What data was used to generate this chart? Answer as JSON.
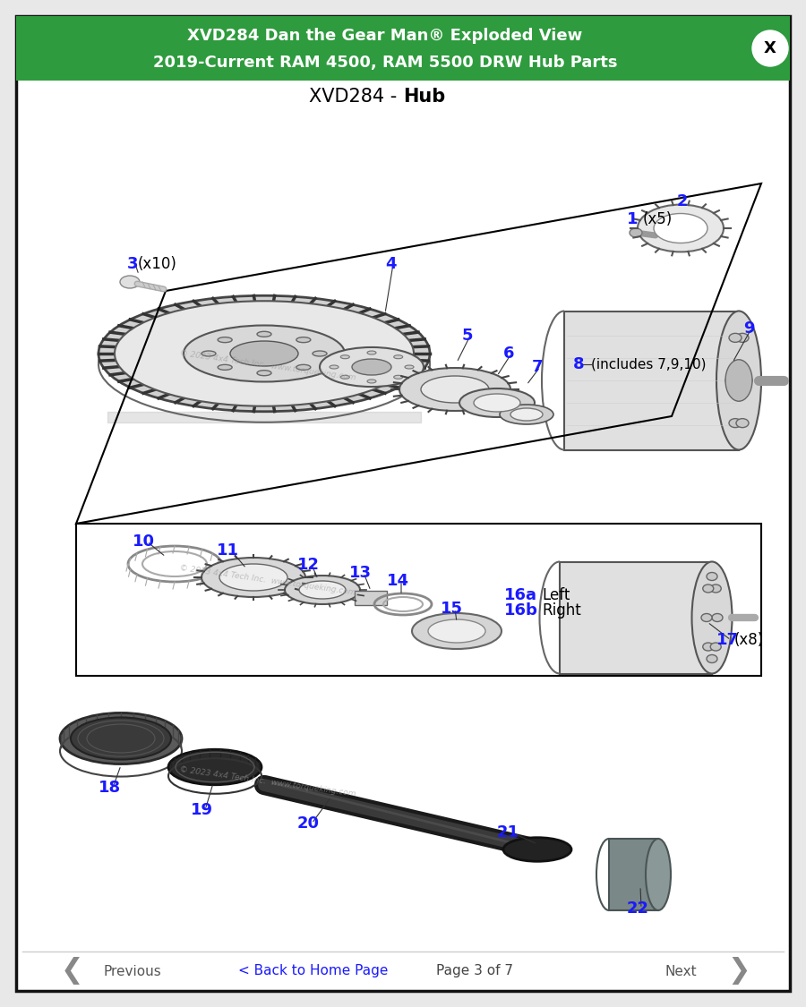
{
  "title_line1": "XVD284 Dan the Gear Man® Exploded View",
  "title_line2": "2019-Current RAM 4500, RAM 5500 DRW Hub Parts",
  "subtitle_normal": "XVD284 - ",
  "subtitle_bold": "Hub",
  "header_bg": "#2e9b3e",
  "header_text_color": "#ffffff",
  "body_bg": "#ffffff",
  "border_color": "#222222",
  "outer_bg": "#e8e8e8",
  "footer_text": "Page 3 of 7",
  "footer_prev": "Previous",
  "footer_home": "< Back to Home Page",
  "footer_next": "Next",
  "part_label_color": "#1a1aff",
  "close_btn_color": "#ffffff",
  "close_btn_text": "#000000"
}
